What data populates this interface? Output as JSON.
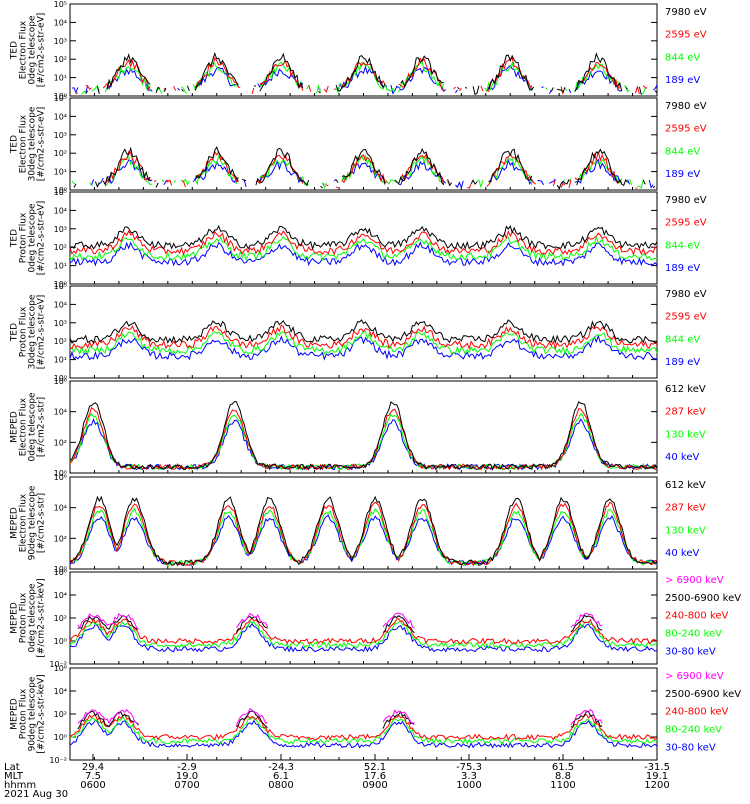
{
  "colors": {
    "black": "#000000",
    "red": "#ff0000",
    "green": "#00ff00",
    "blue": "#0000ff",
    "magenta": "#ff00ff",
    "axis": "#000000"
  },
  "chart_data": [
    {
      "type": "line",
      "ylabel": [
        "TED",
        "Electron Flux",
        "0deg telescope",
        "[#/cm2-s-str-eV]"
      ],
      "yscale": "log",
      "ylim": [
        1,
        100000
      ],
      "yticks": [
        "10⁰",
        "10¹",
        "10²",
        "10³",
        "10⁴",
        "10⁵"
      ],
      "series": [
        {
          "name": "7980 eV",
          "color": "#000000"
        },
        {
          "name": "2595 eV",
          "color": "#ff0000"
        },
        {
          "name": "844 eV",
          "color": "#00ff00"
        },
        {
          "name": "189 eV",
          "color": "#0000ff"
        }
      ]
    },
    {
      "type": "line",
      "ylabel": [
        "TED",
        "Electron Flux",
        "30deg telescope",
        "[#/cm2-s-str-eV]"
      ],
      "yscale": "log",
      "ylim": [
        1,
        100000
      ],
      "yticks": [
        "10⁰",
        "10¹",
        "10²",
        "10³",
        "10⁴",
        "10⁵"
      ],
      "series": [
        {
          "name": "7980 eV",
          "color": "#000000"
        },
        {
          "name": "2595 eV",
          "color": "#ff0000"
        },
        {
          "name": "844 eV",
          "color": "#00ff00"
        },
        {
          "name": "189 eV",
          "color": "#0000ff"
        }
      ]
    },
    {
      "type": "line",
      "ylabel": [
        "TED",
        "Proton Flux",
        "0deg telescope",
        "[#/cm2-s-str-eV]"
      ],
      "yscale": "log",
      "ylim": [
        1,
        100000
      ],
      "yticks": [
        "10⁰",
        "10¹",
        "10²",
        "10³",
        "10⁴",
        "10⁵"
      ],
      "series": [
        {
          "name": "7980 eV",
          "color": "#000000"
        },
        {
          "name": "2595 eV",
          "color": "#ff0000"
        },
        {
          "name": "844 eV",
          "color": "#00ff00"
        },
        {
          "name": "189 eV",
          "color": "#0000ff"
        }
      ]
    },
    {
      "type": "line",
      "ylabel": [
        "TED",
        "Proton Flux",
        "30deg telescope",
        "[#/cm2-s-str-eV]"
      ],
      "yscale": "log",
      "ylim": [
        1,
        100000
      ],
      "yticks": [
        "10⁰",
        "10¹",
        "10²",
        "10³",
        "10⁴",
        "10⁵"
      ],
      "series": [
        {
          "name": "7980 eV",
          "color": "#000000"
        },
        {
          "name": "2595 eV",
          "color": "#ff0000"
        },
        {
          "name": "844 eV",
          "color": "#00ff00"
        },
        {
          "name": "189 eV",
          "color": "#0000ff"
        }
      ]
    },
    {
      "type": "line",
      "ylabel": [
        "MEPED",
        "Electron Flux",
        "0deg telescope",
        "[#/cm2-s-str]"
      ],
      "yscale": "log",
      "ylim": [
        1,
        1000000
      ],
      "yticks": [
        "10⁰",
        "10²",
        "10⁴",
        "10⁶"
      ],
      "series": [
        {
          "name": "612 keV",
          "color": "#000000"
        },
        {
          "name": "287 keV",
          "color": "#ff0000"
        },
        {
          "name": "130 keV",
          "color": "#00ff00"
        },
        {
          "name": "40 keV",
          "color": "#0000ff"
        }
      ]
    },
    {
      "type": "line",
      "ylabel": [
        "MEPED",
        "Electron Flux",
        "90deg telescope",
        "[#/cm2-s-str]"
      ],
      "yscale": "log",
      "ylim": [
        1,
        1000000
      ],
      "yticks": [
        "10⁰",
        "10²",
        "10⁴",
        "10⁶"
      ],
      "series": [
        {
          "name": "612 keV",
          "color": "#000000"
        },
        {
          "name": "287 keV",
          "color": "#ff0000"
        },
        {
          "name": "130 keV",
          "color": "#00ff00"
        },
        {
          "name": "40 keV",
          "color": "#0000ff"
        }
      ]
    },
    {
      "type": "line",
      "ylabel": [
        "MEPED",
        "Proton Flux",
        "0deg telescope",
        "[#/cm2-s-str-keV]"
      ],
      "yscale": "log",
      "ylim": [
        0.01,
        1000000
      ],
      "yticks": [
        "10⁻²",
        "10⁰",
        "10²",
        "10⁴",
        "10⁶"
      ],
      "series": [
        {
          "name": "> 6900 keV",
          "color": "#ff00ff"
        },
        {
          "name": "2500-6900 keV",
          "color": "#000000"
        },
        {
          "name": "240-800 keV",
          "color": "#ff0000"
        },
        {
          "name": "80-240 keV",
          "color": "#00ff00"
        },
        {
          "name": "30-80 keV",
          "color": "#0000ff"
        }
      ]
    },
    {
      "type": "line",
      "ylabel": [
        "MEPED",
        "Proton Flux",
        "90deg telescope",
        "[#/cm2-s-str-keV]"
      ],
      "yscale": "log",
      "ylim": [
        0.01,
        1000000
      ],
      "yticks": [
        "10⁻²",
        "10⁰",
        "10²",
        "10⁴",
        "10⁶"
      ],
      "series": [
        {
          "name": "> 6900 keV",
          "color": "#ff00ff"
        },
        {
          "name": "2500-6900 keV",
          "color": "#000000"
        },
        {
          "name": "240-800 keV",
          "color": "#ff0000"
        },
        {
          "name": "80-240 keV",
          "color": "#00ff00"
        },
        {
          "name": "30-80 keV",
          "color": "#0000ff"
        }
      ]
    }
  ],
  "x_axis": {
    "row_labels": [
      "Lat",
      "MLT",
      "hhmm"
    ],
    "lat": [
      "29.4",
      "-2.9",
      "-24.3",
      "52.1",
      "-75.3",
      "61.5",
      "-31.5"
    ],
    "mlt": [
      "7.5",
      "19.0",
      "6.1",
      "17.6",
      "3.3",
      "8.8",
      "19.1"
    ],
    "hhmm": [
      "0600",
      "0700",
      "0800",
      "0900",
      "1000",
      "1100",
      "1200"
    ],
    "date": "2021 Aug 30"
  }
}
